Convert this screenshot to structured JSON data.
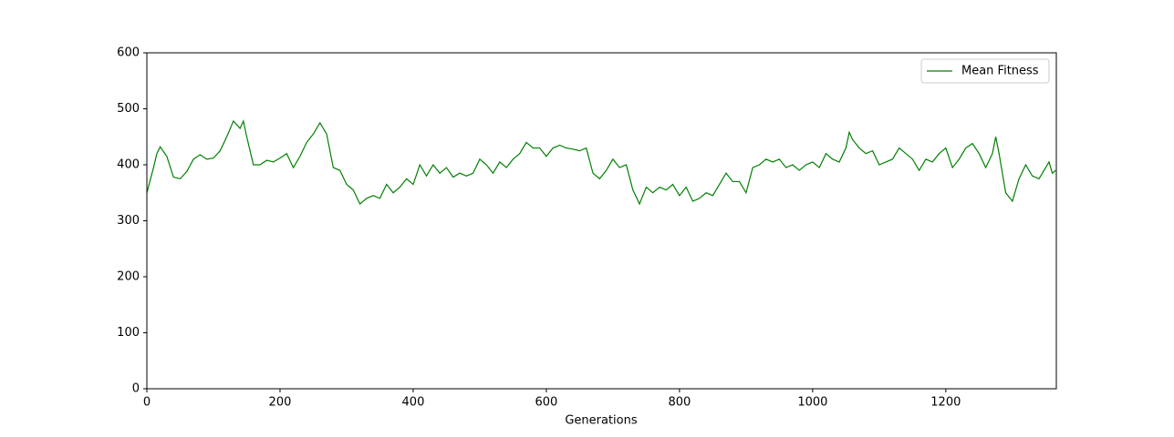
{
  "chart_data": {
    "type": "line",
    "xlabel": "Generations",
    "x": [
      0,
      10,
      15,
      20,
      30,
      40,
      50,
      60,
      70,
      80,
      90,
      100,
      110,
      120,
      130,
      140,
      145,
      150,
      160,
      170,
      180,
      190,
      200,
      210,
      220,
      230,
      240,
      250,
      260,
      270,
      280,
      290,
      300,
      310,
      320,
      330,
      340,
      350,
      360,
      370,
      380,
      390,
      400,
      410,
      420,
      430,
      440,
      450,
      460,
      470,
      480,
      490,
      500,
      510,
      520,
      530,
      540,
      550,
      560,
      570,
      580,
      590,
      600,
      610,
      620,
      630,
      640,
      650,
      660,
      670,
      680,
      690,
      700,
      710,
      720,
      730,
      740,
      750,
      760,
      770,
      780,
      790,
      800,
      810,
      820,
      830,
      840,
      850,
      860,
      870,
      880,
      890,
      900,
      910,
      920,
      930,
      940,
      950,
      960,
      970,
      980,
      990,
      1000,
      1010,
      1020,
      1030,
      1040,
      1050,
      1055,
      1060,
      1070,
      1080,
      1090,
      1100,
      1110,
      1120,
      1130,
      1140,
      1150,
      1160,
      1170,
      1180,
      1190,
      1200,
      1210,
      1220,
      1230,
      1240,
      1250,
      1260,
      1270,
      1275,
      1280,
      1290,
      1300,
      1310,
      1320,
      1330,
      1340,
      1350,
      1355,
      1360,
      1365
    ],
    "series": [
      {
        "name": "Mean Fitness",
        "color": "#008000",
        "values": [
          350,
          395,
          420,
          432,
          415,
          378,
          375,
          388,
          410,
          418,
          410,
          412,
          425,
          450,
          478,
          465,
          478,
          450,
          400,
          400,
          408,
          405,
          412,
          420,
          395,
          415,
          440,
          455,
          475,
          455,
          395,
          390,
          365,
          355,
          330,
          340,
          345,
          340,
          365,
          350,
          360,
          375,
          365,
          400,
          380,
          400,
          385,
          395,
          378,
          385,
          380,
          385,
          410,
          400,
          385,
          405,
          395,
          410,
          420,
          440,
          430,
          430,
          415,
          430,
          435,
          430,
          428,
          425,
          430,
          385,
          375,
          390,
          410,
          395,
          400,
          355,
          330,
          360,
          350,
          360,
          355,
          365,
          345,
          360,
          335,
          340,
          350,
          345,
          365,
          385,
          370,
          370,
          350,
          395,
          400,
          410,
          405,
          410,
          395,
          400,
          390,
          400,
          405,
          395,
          420,
          410,
          405,
          430,
          458,
          445,
          430,
          420,
          425,
          400,
          405,
          410,
          430,
          420,
          410,
          390,
          410,
          405,
          420,
          430,
          395,
          410,
          430,
          438,
          420,
          395,
          420,
          450,
          420,
          350,
          335,
          375,
          400,
          380,
          375,
          395,
          405,
          385,
          390
        ]
      }
    ],
    "xlim": [
      0,
      1366
    ],
    "ylim": [
      0,
      600
    ],
    "xticks": [
      0,
      200,
      400,
      600,
      800,
      1000,
      1200
    ],
    "yticks": [
      0,
      100,
      200,
      300,
      400,
      500,
      600
    ],
    "legend": "upper right"
  }
}
